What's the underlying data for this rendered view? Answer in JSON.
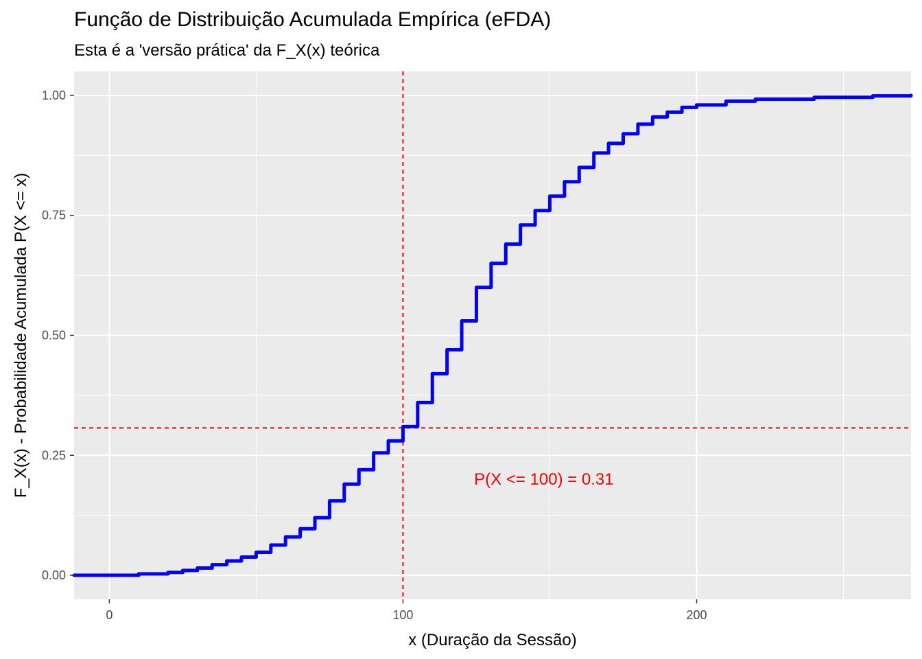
{
  "title": "Função de Distribuição Acumulada Empírica (eFDA)",
  "subtitle": "Esta é a 'versão prática' da F_X(x) teórica",
  "chart_data": {
    "type": "line",
    "xlabel": "x (Duração da Sessão)",
    "ylabel": "F_X(x) - Probabilidade Acumulada P(X <= x)",
    "xlim": [
      -12,
      273
    ],
    "ylim": [
      -0.05,
      1.05
    ],
    "x_ticks": [
      0,
      100,
      200
    ],
    "y_ticks": [
      0.0,
      0.25,
      0.5,
      0.75,
      1.0
    ],
    "x_tick_labels": [
      "0",
      "100",
      "200"
    ],
    "y_tick_labels": [
      "0.00",
      "0.25",
      "0.50",
      "0.75",
      "1.00"
    ],
    "grid": true,
    "series": [
      {
        "color": "#0000ff",
        "x": [
          -12,
          0,
          10,
          20,
          25,
          30,
          35,
          40,
          45,
          50,
          55,
          60,
          65,
          70,
          75,
          80,
          85,
          90,
          95,
          100,
          105,
          110,
          115,
          120,
          125,
          130,
          135,
          140,
          145,
          150,
          155,
          160,
          165,
          170,
          175,
          180,
          185,
          190,
          195,
          200,
          210,
          220,
          240,
          260,
          273
        ],
        "y": [
          0.0,
          0.0,
          0.003,
          0.006,
          0.01,
          0.015,
          0.022,
          0.03,
          0.038,
          0.048,
          0.063,
          0.08,
          0.097,
          0.12,
          0.155,
          0.19,
          0.22,
          0.255,
          0.28,
          0.31,
          0.36,
          0.42,
          0.47,
          0.53,
          0.6,
          0.65,
          0.69,
          0.73,
          0.76,
          0.79,
          0.82,
          0.85,
          0.88,
          0.9,
          0.92,
          0.94,
          0.955,
          0.965,
          0.975,
          0.98,
          0.988,
          0.992,
          0.996,
          0.999,
          1.0
        ]
      }
    ],
    "reference_lines": {
      "vertical_x": 100,
      "horizontal_y": 0.307,
      "color": "#ff0000"
    },
    "annotation": {
      "text": "P(X <= 100) = 0.31",
      "x": 148,
      "y": 0.2,
      "color": "#ff0000"
    }
  }
}
